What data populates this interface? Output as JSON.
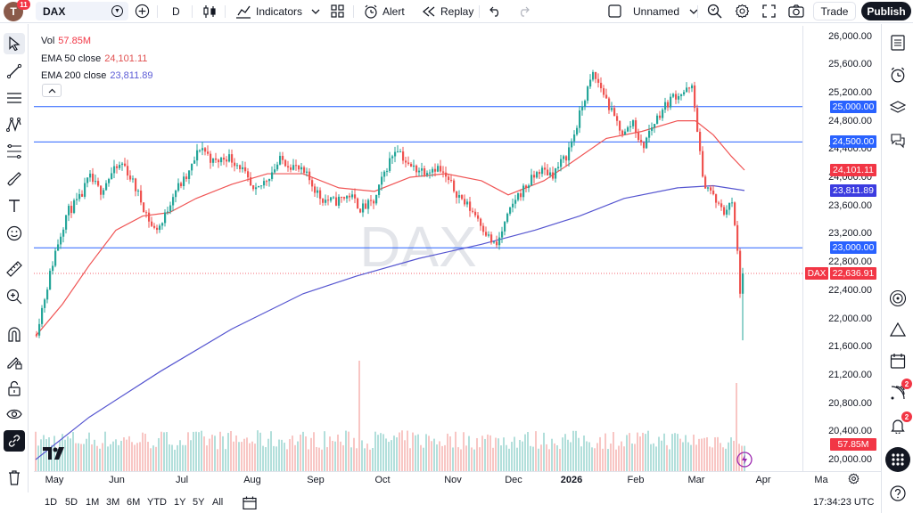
{
  "topbar": {
    "avatar_letter": "T",
    "avatar_badge": "11",
    "symbol": "DAX",
    "interval": "D",
    "indicators_label": "Indicators",
    "alert_label": "Alert",
    "replay_label": "Replay",
    "layout_name": "Unnamed",
    "trade_label": "Trade",
    "publish_label": "Publish"
  },
  "legend": {
    "vol_label": "Vol",
    "vol_value": "57.85M",
    "ema50_label": "EMA 50 close",
    "ema50_value": "24,101.11",
    "ema200_label": "EMA 200 close",
    "ema200_value": "23,811.89"
  },
  "watermark": "DAX",
  "price_axis": {
    "labels": [
      "26,000.00",
      "25,600.00",
      "25,200.00",
      "24,800.00",
      "24,400.00",
      "24,000.00",
      "23,600.00",
      "23,200.00",
      "22,800.00",
      "22,400.00",
      "22,000.00",
      "21,600.00",
      "21,200.00",
      "20,800.00",
      "20,400.00",
      "20,000.00"
    ],
    "tags": {
      "level_25000": "25,000.00",
      "level_24500": "24,500.00",
      "ema50": "24,101.11",
      "ema200": "23,811.89",
      "level_23000": "23,000.00",
      "last_price": "22,636.91",
      "volume": "57.85M",
      "symbol_tag": "DAX"
    }
  },
  "time_axis": {
    "labels": [
      "May",
      "Jun",
      "Jul",
      "Aug",
      "Sep",
      "Oct",
      "Nov",
      "Dec",
      "2026",
      "Feb",
      "Mar",
      "Apr",
      "Ma"
    ]
  },
  "bottombar": {
    "ranges": [
      "1D",
      "5D",
      "1M",
      "3M",
      "6M",
      "YTD",
      "1Y",
      "5Y",
      "All"
    ],
    "clock": "17:34:23 UTC"
  },
  "right_badges": {
    "ideas": "2",
    "alerts": "2"
  },
  "colors": {
    "up": "#26a69a",
    "down": "#ef5350",
    "ema50": "#f05454",
    "ema200": "#5555d0",
    "hline": "#2962ff",
    "ema50_tag": "#f23645",
    "ema200_tag": "#3c3ce0",
    "level_tag": "#2962ff",
    "volume_tag": "#f23645"
  }
}
